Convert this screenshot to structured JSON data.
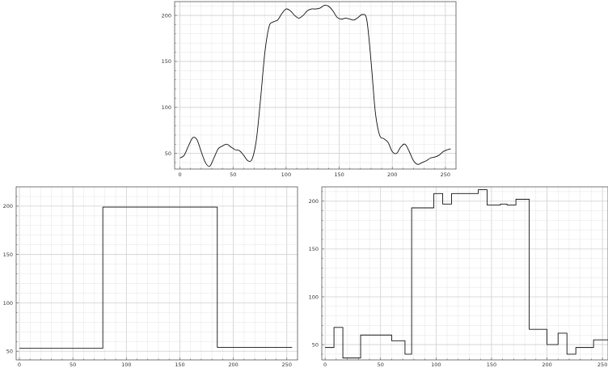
{
  "chart_data": [
    {
      "type": "line",
      "grid": true,
      "xlim": [
        -5,
        260
      ],
      "ylim": [
        33,
        215
      ],
      "xticks": [
        0,
        50,
        100,
        150,
        200,
        250
      ],
      "yticks": [
        50,
        100,
        150,
        200
      ],
      "series": [
        {
          "x": [
            0,
            4,
            8,
            12,
            16,
            20,
            24,
            28,
            32,
            36,
            40,
            44,
            48,
            52,
            56,
            60,
            64,
            68,
            72,
            76,
            80,
            84,
            88,
            92,
            96,
            100,
            104,
            108,
            112,
            116,
            120,
            124,
            128,
            132,
            136,
            140,
            144,
            148,
            152,
            156,
            160,
            164,
            168,
            172,
            176,
            180,
            184,
            188,
            192,
            196,
            200,
            204,
            208,
            212,
            216,
            220,
            224,
            228,
            232,
            236,
            240,
            244,
            248,
            252,
            255
          ],
          "y": [
            45,
            48,
            58,
            67,
            65,
            52,
            40,
            36,
            45,
            55,
            58,
            60,
            57,
            54,
            53,
            48,
            42,
            44,
            65,
            110,
            160,
            188,
            193,
            195,
            202,
            207,
            205,
            200,
            197,
            200,
            205,
            207,
            207,
            208,
            211,
            210,
            205,
            198,
            196,
            197,
            196,
            195,
            198,
            201,
            195,
            150,
            95,
            70,
            66,
            62,
            52,
            50,
            57,
            60,
            52,
            42,
            38,
            40,
            42,
            45,
            46,
            48,
            52,
            54,
            55
          ]
        }
      ]
    },
    {
      "type": "line",
      "grid": true,
      "xlim": [
        -3,
        260
      ],
      "ylim": [
        41,
        220
      ],
      "xticks": [
        0,
        50,
        100,
        150,
        200,
        250
      ],
      "yticks": [
        50,
        100,
        150,
        200
      ],
      "series": [
        {
          "x": [
            0,
            78,
            78,
            185,
            185,
            255
          ],
          "y": [
            53,
            53,
            199,
            199,
            54,
            54
          ]
        }
      ]
    },
    {
      "type": "line",
      "grid": true,
      "xlim": [
        -3,
        255
      ],
      "ylim": [
        34,
        215
      ],
      "xticks": [
        0,
        50,
        100,
        150,
        200,
        250
      ],
      "yticks": [
        50,
        100,
        150,
        200
      ],
      "series": [
        {
          "x": [
            0,
            8,
            8,
            16,
            16,
            24,
            24,
            32,
            32,
            48,
            48,
            60,
            60,
            72,
            72,
            78,
            78,
            98,
            98,
            106,
            106,
            114,
            114,
            126,
            126,
            138,
            138,
            146,
            146,
            158,
            158,
            164,
            164,
            172,
            172,
            184,
            184,
            200,
            200,
            210,
            210,
            218,
            218,
            226,
            226,
            234,
            234,
            242,
            242,
            255
          ],
          "y": [
            47,
            47,
            68,
            68,
            36,
            36,
            36,
            36,
            60,
            60,
            60,
            60,
            54,
            54,
            40,
            40,
            193,
            193,
            208,
            208,
            197,
            197,
            208,
            208,
            208,
            208,
            212,
            212,
            196,
            196,
            197,
            197,
            196,
            196,
            202,
            202,
            66,
            66,
            50,
            50,
            62,
            62,
            40,
            40,
            47,
            47,
            47,
            47,
            55,
            55
          ]
        }
      ]
    }
  ]
}
